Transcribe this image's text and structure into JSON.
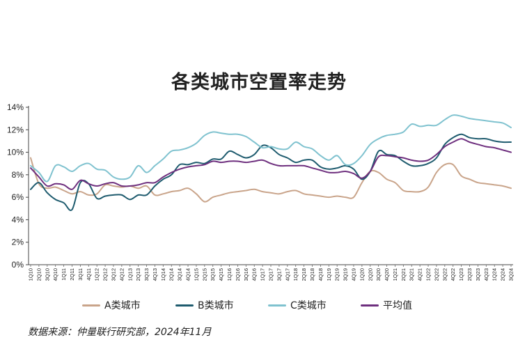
{
  "chart_data": {
    "type": "line",
    "title": "各类城市空置率走势",
    "source": "数据来源：仲量联行研究部，2024年11月",
    "ylim": [
      0,
      14
    ],
    "yticks": [
      "0%",
      "2%",
      "4%",
      "6%",
      "8%",
      "10%",
      "12%",
      "14%"
    ],
    "grid": false,
    "legend_position": "bottom",
    "categories": [
      "1Q10",
      "2Q10",
      "3Q10",
      "4Q10",
      "1Q11",
      "2Q11",
      "3Q11",
      "4Q11",
      "1Q12",
      "2Q12",
      "3Q12",
      "4Q12",
      "1Q13",
      "2Q13",
      "3Q13",
      "4Q13",
      "1Q14",
      "2Q14",
      "3Q14",
      "4Q14",
      "1Q15",
      "2Q15",
      "3Q15",
      "4Q15",
      "1Q16",
      "2Q16",
      "3Q16",
      "4Q16",
      "1Q17",
      "2Q17",
      "3Q17",
      "4Q17",
      "1Q18",
      "2Q18",
      "3Q18",
      "4Q18",
      "1Q19",
      "2Q19",
      "3Q19",
      "4Q19",
      "1Q20",
      "2Q20",
      "3Q20",
      "4Q20",
      "1Q21",
      "2Q21",
      "3Q21",
      "4Q21",
      "1Q22",
      "2Q22",
      "3Q22",
      "4Q22",
      "1Q23",
      "2Q23",
      "3Q23",
      "4Q23",
      "1Q24",
      "2Q24",
      "3Q24"
    ],
    "series": [
      {
        "name": "A类城市",
        "color": "#c9a48a",
        "values": [
          9.5,
          7.2,
          6.8,
          6.9,
          6.6,
          6.3,
          6.5,
          6.2,
          6.3,
          7.1,
          7.0,
          6.9,
          7.0,
          6.8,
          7.0,
          6.2,
          6.3,
          6.5,
          6.6,
          6.8,
          6.3,
          5.6,
          6.0,
          6.2,
          6.4,
          6.5,
          6.6,
          6.7,
          6.5,
          6.4,
          6.3,
          6.5,
          6.6,
          6.3,
          6.2,
          6.1,
          6.0,
          6.1,
          6.0,
          6.0,
          7.3,
          8.3,
          8.2,
          7.6,
          7.3,
          6.6,
          6.5,
          6.5,
          6.9,
          8.2,
          8.9,
          8.9,
          7.9,
          7.6,
          7.3,
          7.2,
          7.1,
          7.0,
          6.8
        ]
      },
      {
        "name": "B类城市",
        "color": "#1e5b6e",
        "values": [
          6.7,
          7.3,
          6.4,
          5.8,
          5.5,
          4.9,
          7.3,
          7.2,
          5.9,
          6.1,
          6.2,
          6.2,
          5.8,
          6.2,
          6.2,
          7.0,
          7.6,
          8.0,
          8.9,
          8.9,
          9.1,
          9.0,
          9.4,
          9.4,
          10.1,
          9.8,
          9.5,
          9.8,
          10.6,
          10.4,
          9.8,
          9.5,
          9.1,
          9.3,
          9.3,
          8.7,
          8.5,
          8.6,
          8.8,
          8.5,
          7.6,
          8.3,
          10.1,
          9.8,
          9.7,
          9.2,
          8.8,
          8.8,
          9.0,
          9.5,
          10.7,
          11.3,
          11.6,
          11.3,
          11.2,
          11.2,
          11.0,
          10.9,
          10.9
        ]
      },
      {
        "name": "C类城市",
        "color": "#7fc2cf",
        "values": [
          8.8,
          8.2,
          7.4,
          8.8,
          8.7,
          8.3,
          8.8,
          9.0,
          8.5,
          8.4,
          7.8,
          7.6,
          7.8,
          8.8,
          8.2,
          8.8,
          9.4,
          10.1,
          10.2,
          10.4,
          10.8,
          11.5,
          11.8,
          11.7,
          11.6,
          11.6,
          11.4,
          10.9,
          10.4,
          10.5,
          10.3,
          10.3,
          10.9,
          10.5,
          10.3,
          9.7,
          9.3,
          9.7,
          8.9,
          9.0,
          9.7,
          10.7,
          11.2,
          11.5,
          11.6,
          11.8,
          12.5,
          12.3,
          12.4,
          12.4,
          12.9,
          13.3,
          13.2,
          13.0,
          12.9,
          12.8,
          12.7,
          12.6,
          12.2
        ]
      },
      {
        "name": "平均值",
        "color": "#6e2f7e",
        "values": [
          8.6,
          7.8,
          7.0,
          7.2,
          7.1,
          6.7,
          7.5,
          7.2,
          7.0,
          7.2,
          7.3,
          7.0,
          7.0,
          7.1,
          7.3,
          7.3,
          7.8,
          8.2,
          8.5,
          8.7,
          8.8,
          8.9,
          9.2,
          9.1,
          9.2,
          9.2,
          9.1,
          9.2,
          9.3,
          9.0,
          8.8,
          8.8,
          8.8,
          8.8,
          8.6,
          8.4,
          8.2,
          8.2,
          8.3,
          8.1,
          7.7,
          8.3,
          9.6,
          9.7,
          9.6,
          9.5,
          9.3,
          9.2,
          9.3,
          9.8,
          10.5,
          10.9,
          11.2,
          10.9,
          10.7,
          10.5,
          10.4,
          10.2,
          10.0
        ]
      }
    ]
  }
}
